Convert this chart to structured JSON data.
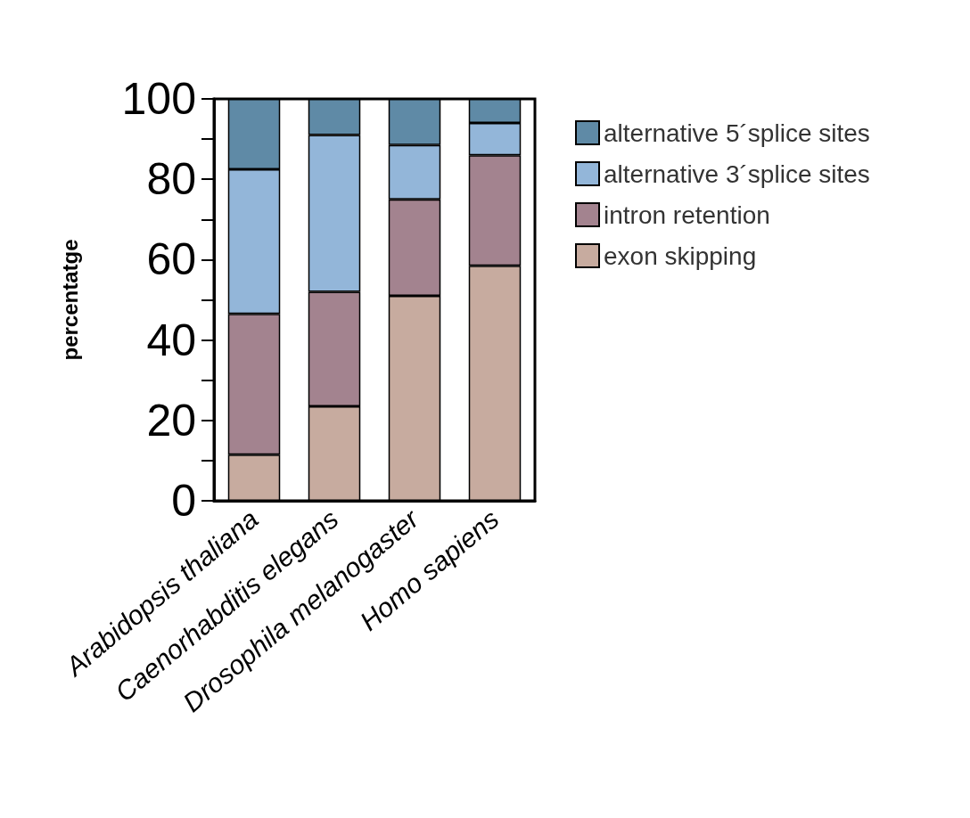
{
  "chart_data": {
    "type": "bar",
    "stacked": true,
    "ylabel": "percentatge",
    "categories": [
      "Arabidopsis thaliana",
      "Caenorhabditis elegans",
      "Drosophila melanogaster",
      "Homo sapiens"
    ],
    "series": [
      {
        "name": "exon skipping",
        "color": "#c7ab9f",
        "values": [
          11.5,
          23.5,
          51,
          58.5
        ]
      },
      {
        "name": "intron retention",
        "color": "#a3838f",
        "values": [
          35,
          28.5,
          24,
          27.5
        ]
      },
      {
        "name": "alternative 3´splice sites",
        "color": "#93b6d9",
        "values": [
          36,
          39,
          13.5,
          8
        ]
      },
      {
        "name": "alternative 5´splice sites",
        "color": "#5f8aa6",
        "values": [
          17.5,
          9,
          11.5,
          6
        ]
      }
    ],
    "ylim": [
      0,
      100
    ],
    "yticks": [
      0,
      {
        "value": 10,
        "label": null
      },
      20,
      {
        "value": 30,
        "label": null
      },
      40,
      {
        "value": 50,
        "label": null
      },
      60,
      {
        "value": 70,
        "label": null
      },
      80,
      {
        "value": 90,
        "label": null
      },
      100
    ],
    "grid": false,
    "legend": "right"
  }
}
